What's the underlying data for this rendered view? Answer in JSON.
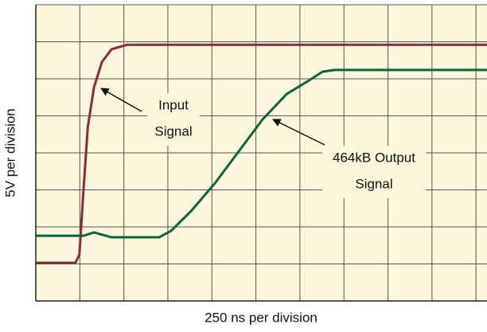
{
  "chart_data": {
    "type": "line",
    "xlabel": "250 ns per division",
    "ylabel": "5V per division",
    "xlim": [
      0,
      10.25
    ],
    "ylim": [
      0,
      8
    ],
    "xticks": [
      0,
      1,
      2,
      3,
      4,
      5,
      6,
      7,
      8,
      9,
      10
    ],
    "yticks": [
      0,
      1,
      2,
      3,
      4,
      5,
      6,
      7,
      8
    ],
    "grid": true,
    "series": [
      {
        "name": "Input Signal",
        "color": "#8b2a3a",
        "x": [
          0,
          0.9,
          0.99,
          1.07,
          1.18,
          1.32,
          1.5,
          1.72,
          2.08,
          10.25
        ],
        "y": [
          1.03,
          1.03,
          1.25,
          2.75,
          4.69,
          5.76,
          6.45,
          6.8,
          6.92,
          6.92
        ]
      },
      {
        "name": "464kB Output Signal",
        "color": "#11623a",
        "x": [
          0,
          1.08,
          1.32,
          1.72,
          2.8,
          3.07,
          3.53,
          4.07,
          4.61,
          5.15,
          5.7,
          6.24,
          6.51,
          6.78,
          10.25
        ],
        "y": [
          1.76,
          1.76,
          1.85,
          1.72,
          1.72,
          1.89,
          2.43,
          3.18,
          4.04,
          4.9,
          5.59,
          5.98,
          6.19,
          6.24,
          6.24
        ]
      }
    ],
    "annotations": [
      [
        "Input",
        "Signal"
      ],
      [
        "464kB Output",
        "Signal"
      ]
    ]
  }
}
